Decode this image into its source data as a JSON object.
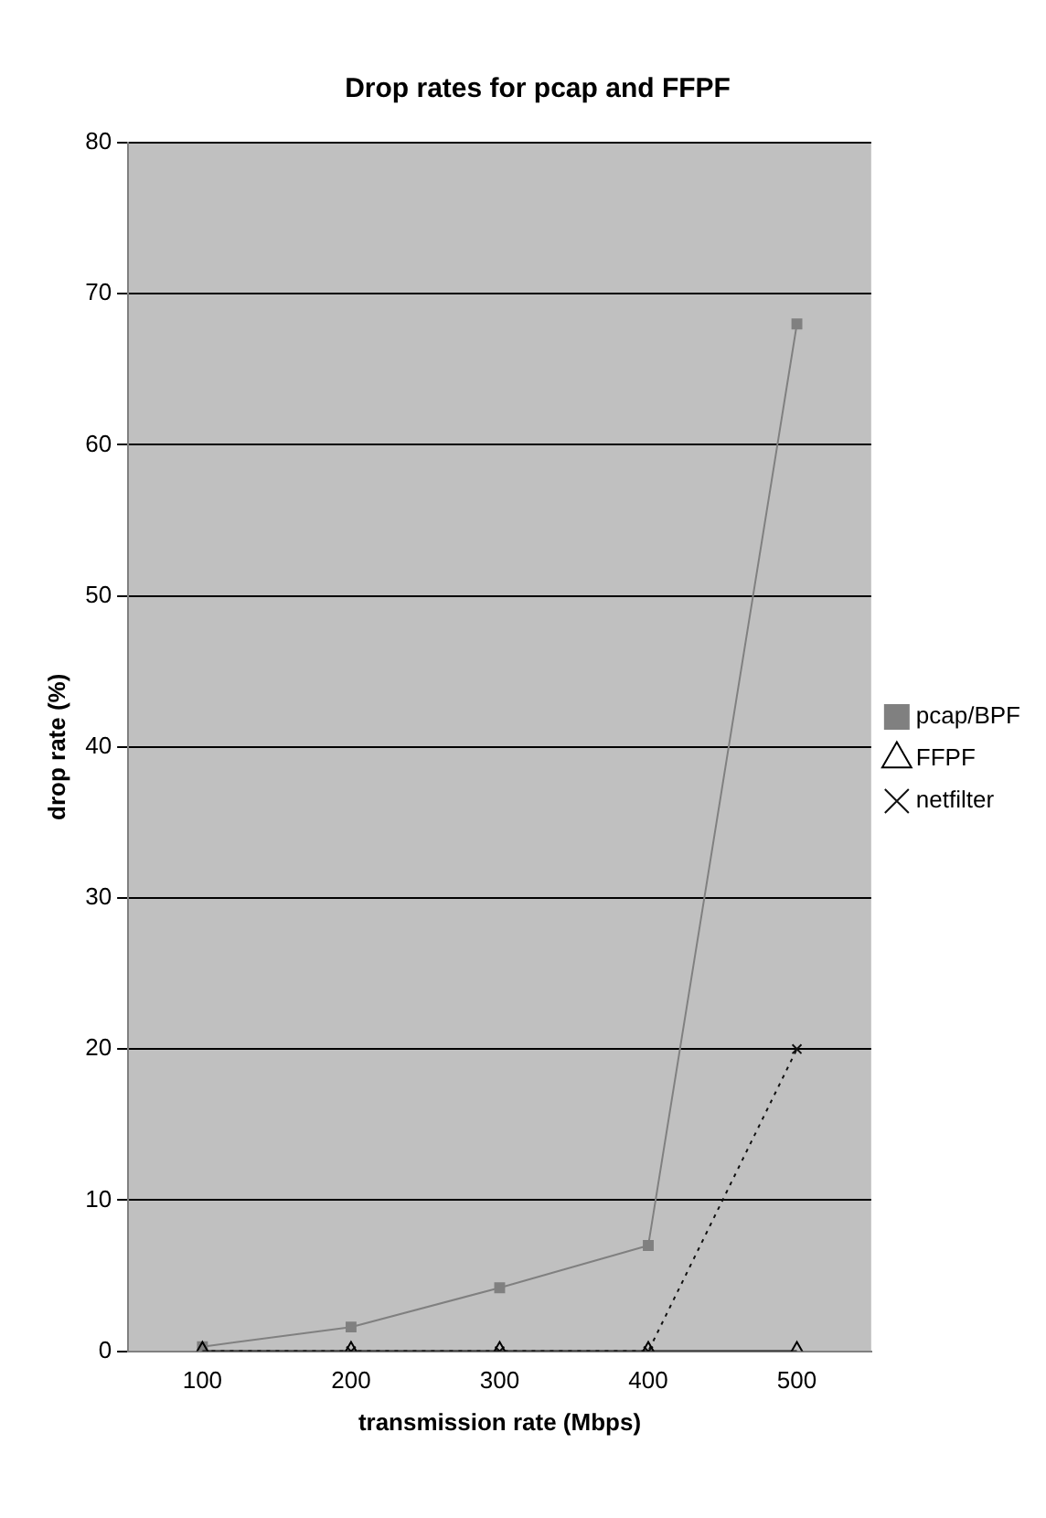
{
  "chart_data": {
    "type": "line",
    "title": "Drop rates for pcap and FFPF",
    "xlabel": "transmission rate (Mbps)",
    "ylabel": "drop rate (%)",
    "categories": [
      "100",
      "200",
      "300",
      "400",
      "500"
    ],
    "series": [
      {
        "name": "pcap/BPF",
        "color": "#808080",
        "values": [
          0.3,
          1.6,
          4.2,
          7,
          68
        ],
        "marker": "square",
        "line_style": "solid"
      },
      {
        "name": "FFPF",
        "color": "#000000",
        "values": [
          0,
          0,
          0,
          0,
          0
        ],
        "marker": "triangle",
        "line_style": "solid"
      },
      {
        "name": "netfilter",
        "color": "#111111",
        "values": [
          0,
          0,
          0,
          0,
          20
        ],
        "marker": "cross",
        "line_style": "dotted"
      }
    ],
    "ylim": [
      0,
      80
    ],
    "yticks": [
      0,
      10,
      20,
      30,
      40,
      50,
      60,
      70,
      80
    ],
    "grid": "y",
    "legend": "right"
  }
}
